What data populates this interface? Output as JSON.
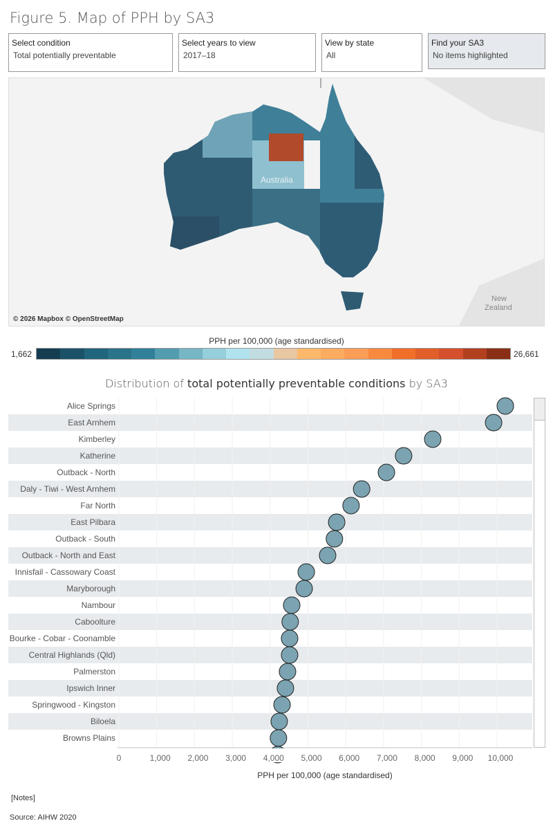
{
  "title": "Figure 5. Map of PPH by SA3",
  "filters": [
    {
      "label": "Select condition",
      "value": "Total potentially preventable"
    },
    {
      "label": "Select years to view",
      "value": "2017–18"
    },
    {
      "label": "View by state",
      "value": "All"
    },
    {
      "label": "Find your SA3",
      "value": "No items highlighted"
    }
  ],
  "map": {
    "credit": "© 2026 Mapbox © OpenStreetMap",
    "labels": {
      "australia": "Australia",
      "nz": "New Zealand"
    }
  },
  "legend": {
    "title": "PPH per 100,000 (age standardised)",
    "min": "1,662",
    "max": "26,661",
    "colors": [
      "#143d52",
      "#1b5268",
      "#20657b",
      "#2a7389",
      "#31809a",
      "#529caf",
      "#77b6c4",
      "#95cfdb",
      "#b0e3ee",
      "#c2dde1",
      "#e8c7a2",
      "#fdb96b",
      "#fcac5f",
      "#fb9d56",
      "#f78a3e",
      "#f26f2a",
      "#e35f2a",
      "#d4502c",
      "#b2401f",
      "#8a2e16"
    ]
  },
  "notes": "[Notes]",
  "source": "Source: AIHW 2020",
  "chart_data": {
    "type": "scatter",
    "title": "Distribution of total potentially preventable conditions by SA3",
    "title_parts": [
      "Distribution of ",
      "total potentially preventable conditions",
      " by SA3"
    ],
    "xlabel": "PPH per 100,000 (age standardised)",
    "xlim": [
      0,
      11000
    ],
    "xticks": [
      "0",
      "1,000",
      "2,000",
      "3,000",
      "4,000",
      "5,000",
      "6,000",
      "7,000",
      "8,000",
      "9,000",
      "10,000"
    ],
    "xtick_values": [
      0,
      1000,
      2000,
      3000,
      4000,
      5000,
      6000,
      7000,
      8000,
      9000,
      10000
    ],
    "point_color": "#7ba3b1",
    "categories": [
      "Alice Springs",
      "East Arnhem",
      "Kimberley",
      "Katherine",
      "Outback - North",
      "Daly - Tiwi - West Arnhem",
      "Far North",
      "East Pilbara",
      "Outback - South",
      "Outback - North and East",
      "Innisfail - Cassowary Coast",
      "Maryborough",
      "Nambour",
      "Caboolture",
      "Bourke - Cobar - Coonamble",
      "Central Highlands (Qld)",
      "Palmerston",
      "Ipswich Inner",
      "Springwood - Kingston",
      "Biloela",
      "Browns Plains"
    ],
    "values": [
      10220,
      9910,
      8300,
      7530,
      7075,
      6420,
      6140,
      5760,
      5700,
      5520,
      4955,
      4900,
      4570,
      4530,
      4515,
      4515,
      4460,
      4405,
      4315,
      4240,
      4220
    ]
  }
}
